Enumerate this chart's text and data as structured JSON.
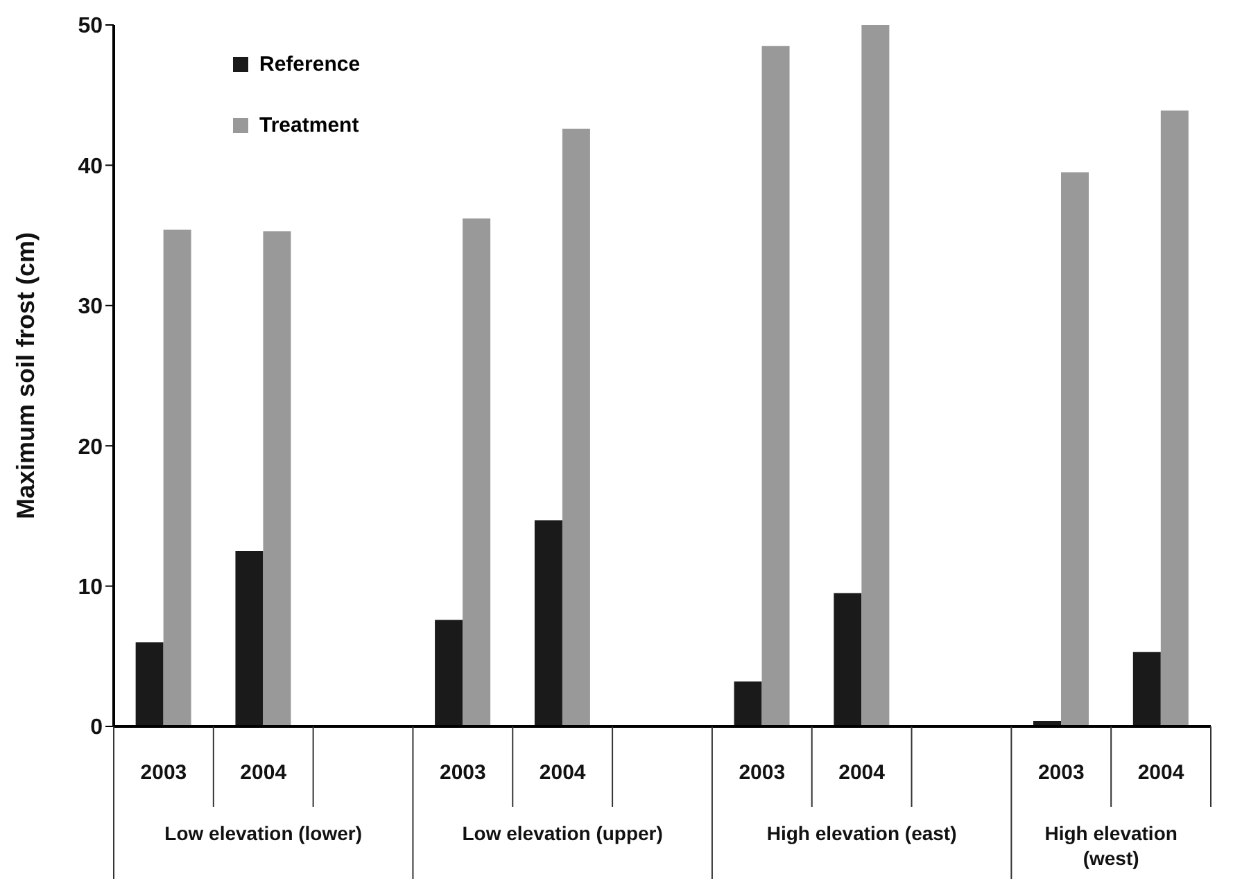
{
  "chart_data": {
    "type": "bar",
    "ylabel": "Maximum soil frost (cm)",
    "categories": [
      "2003",
      "2004",
      null,
      "2003",
      "2004",
      null,
      "2003",
      "2004",
      null,
      "2003",
      "2004"
    ],
    "series": [
      {
        "name": "Reference",
        "color": "#1a1a1a",
        "values": [
          6.0,
          12.5,
          null,
          7.6,
          14.7,
          null,
          3.2,
          9.5,
          null,
          0.4,
          5.3
        ]
      },
      {
        "name": "Treatment",
        "color": "#999999",
        "values": [
          35.4,
          35.3,
          null,
          36.2,
          42.6,
          null,
          48.5,
          50.0,
          null,
          39.5,
          43.9
        ]
      }
    ],
    "annotations": [
      "Low elevation (lower)",
      "Low elevation (upper)",
      "High elevation (east)",
      "High elevation (west)"
    ],
    "ylim": [
      0,
      50
    ],
    "yticks": [
      0,
      10,
      20,
      30,
      40,
      50
    ],
    "grid": false,
    "legend": "top left"
  }
}
